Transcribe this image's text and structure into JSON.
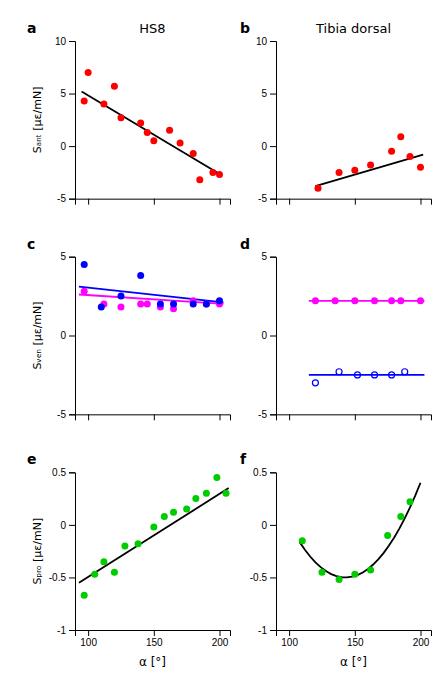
{
  "chart_data": [
    {
      "type": "scatter",
      "title": "HS8",
      "annotations": [
        "a"
      ],
      "y_label": "Sₐₙₜ [µε/mN]",
      "series": [
        {
          "type": "scatter",
          "marker": "circle",
          "color": "#ff0000",
          "x": [
            97,
            100,
            112,
            120,
            125,
            140,
            145,
            150,
            162,
            170,
            180,
            185,
            195,
            200
          ],
          "values": [
            4.3,
            7.0,
            4.0,
            5.7,
            2.7,
            2.2,
            1.3,
            0.5,
            1.5,
            0.3,
            -0.7,
            -3.2,
            -2.5,
            -2.7
          ]
        },
        {
          "type": "line",
          "color": "#000000",
          "x": [
            95,
            202
          ],
          "values": [
            5.2,
            -2.8
          ]
        }
      ],
      "xlim": [
        90,
        208
      ],
      "xticks": [
        100,
        150,
        200
      ],
      "ylim": [
        -5,
        10
      ],
      "yticks": [
        -5,
        0,
        5,
        10
      ],
      "tick_labels": "y"
    },
    {
      "type": "scatter",
      "title": "Tibia dorsal",
      "annotations": [
        "b"
      ],
      "series": [
        {
          "type": "scatter",
          "marker": "circle",
          "color": "#ff0000",
          "x": [
            122,
            138,
            150,
            162,
            178,
            185,
            192,
            200
          ],
          "values": [
            -4.0,
            -2.5,
            -2.3,
            -1.8,
            -0.5,
            0.9,
            -1.0,
            -2.0
          ]
        },
        {
          "type": "line",
          "color": "#000000",
          "x": [
            120,
            202
          ],
          "values": [
            -3.8,
            -0.8
          ]
        }
      ],
      "xlim": [
        90,
        208
      ],
      "xticks": [
        100,
        150,
        200
      ],
      "ylim": [
        -5,
        10
      ],
      "yticks": [
        -5,
        0,
        5,
        10
      ],
      "tick_labels": "y"
    },
    {
      "type": "scatter",
      "annotations": [
        "c"
      ],
      "y_label": "Sᵥₑₙ [µε/mN]",
      "series": [
        {
          "type": "scatter",
          "marker": "circle",
          "color": "#ff00ff",
          "x": [
            97,
            112,
            125,
            140,
            145,
            155,
            165,
            180,
            190,
            200
          ],
          "values": [
            2.8,
            2.0,
            1.8,
            2.0,
            2.0,
            1.8,
            1.7,
            2.2,
            2.0,
            2.0
          ]
        },
        {
          "type": "scatter",
          "marker": "circle",
          "color": "#0000ff",
          "x": [
            97,
            110,
            125,
            140,
            155,
            165,
            180,
            190,
            200
          ],
          "values": [
            4.5,
            1.8,
            2.5,
            3.8,
            2.0,
            2.0,
            2.0,
            2.0,
            2.2
          ]
        },
        {
          "type": "line",
          "color": "#ff00ff",
          "x": [
            93,
            203
          ],
          "values": [
            2.6,
            2.0
          ]
        },
        {
          "type": "line",
          "color": "#0000ff",
          "x": [
            93,
            203
          ],
          "values": [
            3.1,
            2.1
          ]
        }
      ],
      "xlim": [
        90,
        208
      ],
      "xticks": [
        100,
        150,
        200
      ],
      "ylim": [
        -5,
        5
      ],
      "yticks": [
        -5,
        0,
        5
      ],
      "tick_labels": "y"
    },
    {
      "type": "scatter",
      "annotations": [
        "d"
      ],
      "series": [
        {
          "type": "scatter",
          "marker": "circle",
          "color": "#ff00ff",
          "x": [
            120,
            135,
            150,
            165,
            178,
            185,
            200
          ],
          "values": [
            2.2,
            2.2,
            2.2,
            2.2,
            2.2,
            2.2,
            2.2
          ]
        },
        {
          "type": "scatter",
          "marker": "open-circle",
          "color": "#0000ff",
          "x": [
            120,
            138,
            152,
            165,
            178,
            188
          ],
          "values": [
            -3.0,
            -2.3,
            -2.5,
            -2.5,
            -2.5,
            -2.3
          ]
        },
        {
          "type": "line",
          "color": "#ff00ff",
          "x": [
            115,
            203
          ],
          "values": [
            2.2,
            2.2
          ]
        },
        {
          "type": "line",
          "color": "#0000ff",
          "x": [
            115,
            203
          ],
          "values": [
            -2.5,
            -2.5
          ]
        }
      ],
      "xlim": [
        90,
        208
      ],
      "xticks": [
        100,
        150,
        200
      ],
      "ylim": [
        -5,
        5
      ],
      "yticks": [
        -5,
        0,
        5
      ],
      "tick_labels": "y"
    },
    {
      "type": "scatter",
      "annotations": [
        "e"
      ],
      "y_label": "Sₚᵣₒ [µε/mN]",
      "x_label": "α [°]",
      "series": [
        {
          "type": "scatter",
          "marker": "circle",
          "color": "#00cc00",
          "x": [
            97,
            105,
            112,
            120,
            128,
            138,
            150,
            158,
            165,
            175,
            182,
            190,
            198,
            205
          ],
          "values": [
            -0.67,
            -0.47,
            -0.35,
            -0.45,
            -0.2,
            -0.18,
            -0.02,
            0.08,
            0.12,
            0.15,
            0.25,
            0.3,
            0.45,
            0.3
          ]
        },
        {
          "type": "line",
          "color": "#000000",
          "x": [
            93,
            207
          ],
          "values": [
            -0.55,
            0.35
          ]
        }
      ],
      "xlim": [
        90,
        208
      ],
      "xticks": [
        100,
        150,
        200
      ],
      "ylim": [
        -1,
        0.5
      ],
      "yticks": [
        -1,
        -0.5,
        0,
        0.5
      ]
    },
    {
      "type": "scatter",
      "annotations": [
        "f"
      ],
      "x_label": "α [°]",
      "series": [
        {
          "type": "scatter",
          "marker": "circle",
          "color": "#00cc00",
          "x": [
            110,
            125,
            138,
            150,
            162,
            175,
            185,
            192
          ],
          "values": [
            -0.15,
            -0.45,
            -0.52,
            -0.47,
            -0.43,
            -0.1,
            0.08,
            0.22
          ]
        },
        {
          "type": "line",
          "color": "#000000",
          "x": [
            108,
            112,
            116,
            120,
            124,
            128,
            132,
            136,
            140,
            144,
            148,
            152,
            156,
            160,
            164,
            168,
            172,
            176,
            180,
            184,
            188,
            192,
            196,
            200
          ],
          "values": [
            -0.164,
            -0.237,
            -0.301,
            -0.356,
            -0.402,
            -0.439,
            -0.468,
            -0.488,
            -0.498,
            -0.5,
            -0.493,
            -0.478,
            -0.453,
            -0.42,
            -0.377,
            -0.326,
            -0.266,
            -0.197,
            -0.12,
            -0.033,
            0.062,
            0.166,
            0.279,
            0.401
          ]
        }
      ],
      "xlim": [
        90,
        208
      ],
      "xticks": [
        100,
        150,
        200
      ],
      "ylim": [
        -1,
        0.5
      ],
      "yticks": [
        -1,
        -0.5,
        0,
        0.5
      ]
    }
  ]
}
